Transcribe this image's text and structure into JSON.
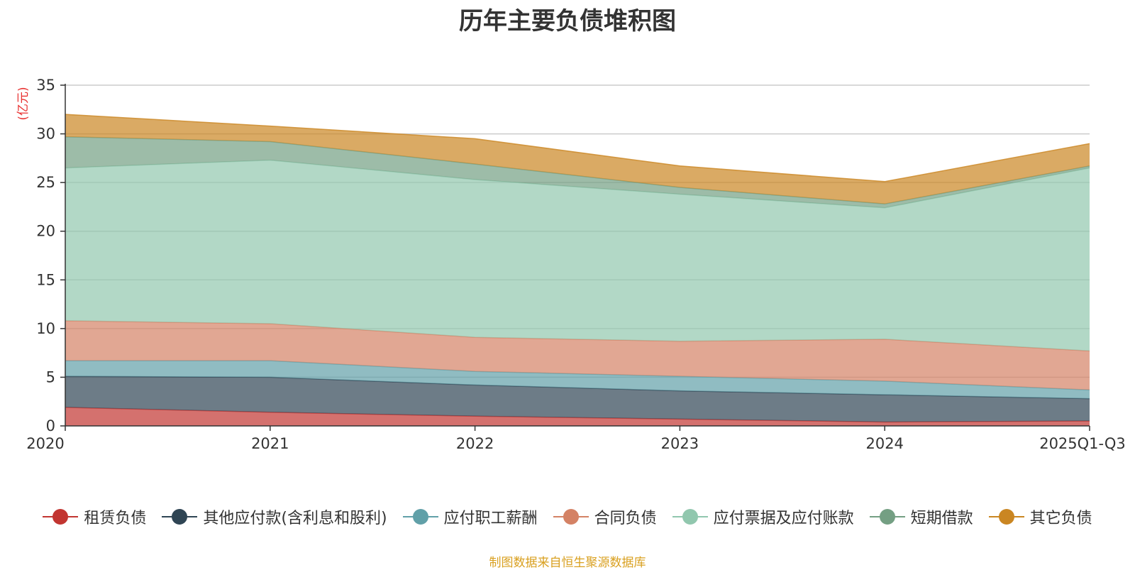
{
  "chart_data": {
    "type": "area",
    "stacked": true,
    "title": "历年主要负债堆积图",
    "unit_label": "(亿元)",
    "categories": [
      "2020",
      "2021",
      "2022",
      "2023",
      "2024",
      "2025Q1-Q3"
    ],
    "ylim": [
      0,
      35
    ],
    "yticks": [
      "0",
      "5",
      "10",
      "15",
      "20",
      "25",
      "30",
      "35"
    ],
    "series": [
      {
        "name": "租赁负债",
        "color": "#c23531",
        "values": [
          1.9,
          1.4,
          1.0,
          0.7,
          0.4,
          0.5
        ]
      },
      {
        "name": "其他应付款(含利息和股利)",
        "color": "#2f4554",
        "values": [
          3.2,
          3.6,
          3.2,
          2.9,
          2.8,
          2.3
        ]
      },
      {
        "name": "应付职工薪酬",
        "color": "#61a0a8",
        "values": [
          1.6,
          1.7,
          1.4,
          1.5,
          1.4,
          0.9
        ]
      },
      {
        "name": "合同负债",
        "color": "#d48265",
        "values": [
          4.1,
          3.8,
          3.5,
          3.6,
          4.3,
          4.0
        ]
      },
      {
        "name": "应付票据及应付账款",
        "color": "#91c7ae",
        "values": [
          15.7,
          16.8,
          16.2,
          15.1,
          13.5,
          18.8
        ]
      },
      {
        "name": "短期借款",
        "color": "#749f83",
        "values": [
          3.2,
          1.9,
          1.6,
          0.7,
          0.4,
          0.2
        ]
      },
      {
        "name": "其它负债",
        "color": "#ca8622",
        "values": [
          2.3,
          1.6,
          2.6,
          2.2,
          2.3,
          2.3
        ]
      }
    ],
    "legend_position": "bottom",
    "source_note": "制图数据来自恒生聚源数据库"
  }
}
